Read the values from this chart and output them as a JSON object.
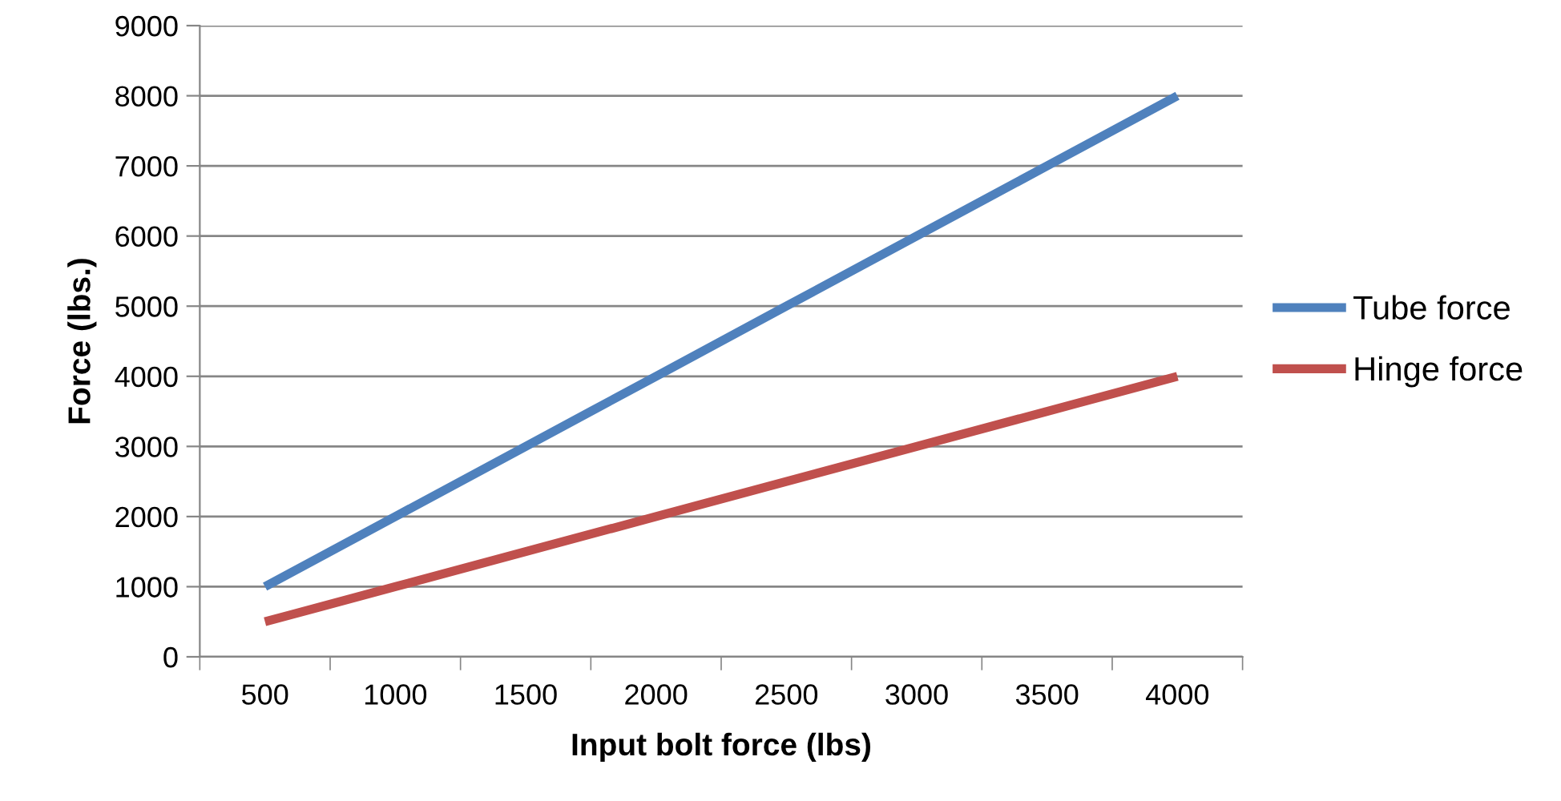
{
  "chart_data": {
    "type": "line",
    "xlabel": "Input bolt force (lbs)",
    "ylabel": "Force (lbs.)",
    "categories": [
      "500",
      "1000",
      "1500",
      "2000",
      "2500",
      "3000",
      "3500",
      "4000"
    ],
    "series": [
      {
        "name": "Tube force",
        "color": "#4f81bd",
        "values": [
          1000,
          2000,
          3000,
          4000,
          5000,
          6000,
          7000,
          8000
        ]
      },
      {
        "name": "Hinge force",
        "color": "#c0504d",
        "values": [
          500,
          1000,
          1500,
          2000,
          2500,
          3000,
          3500,
          4000
        ]
      }
    ],
    "ylim": [
      0,
      9000
    ],
    "yticks": [
      0,
      1000,
      2000,
      3000,
      4000,
      5000,
      6000,
      7000,
      8000,
      9000
    ],
    "grid": "y",
    "legend": "right",
    "marker": "none",
    "line_style": "solid"
  }
}
